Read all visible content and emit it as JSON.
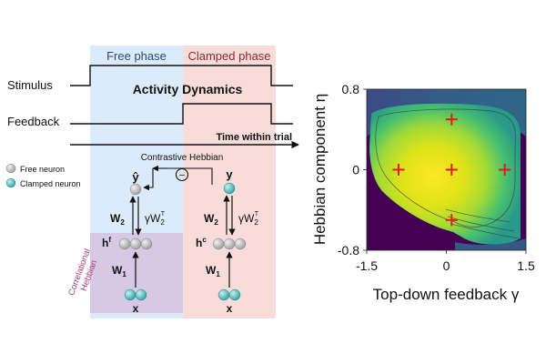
{
  "diagram": {
    "phases": {
      "free": "Free phase",
      "clamped": "Clamped phase"
    },
    "signals": {
      "stimulus": "Stimulus",
      "feedback": "Feedback",
      "activity": "Activity Dynamics",
      "time_axis": "Time within trial"
    },
    "legend": {
      "free_neuron": "Free neuron",
      "clamped_neuron": "Clamped neuron"
    },
    "contrastive_label": "Contrastive Hebbian",
    "correlational_label_1": "Correlational",
    "correlational_label_2": "Hebbian",
    "operator_symbol": "−",
    "free_net": {
      "output": "ŷ",
      "hidden": "h",
      "hidden_sup": "f",
      "input": "x",
      "w_top": "W",
      "w_top_sub": "2",
      "w_fb": "γW",
      "w_fb_sub": "2",
      "w_fb_sup": "T",
      "w_bottom": "W",
      "w_bottom_sub": "1"
    },
    "clamped_net": {
      "output": "y",
      "hidden": "h",
      "hidden_sup": "c",
      "input": "x",
      "w_top": "W",
      "w_top_sub": "2",
      "w_fb": "γW",
      "w_fb_sub": "2",
      "w_fb_sup": "T",
      "w_bottom": "W",
      "w_bottom_sub": "1"
    },
    "colors": {
      "free_bg": "#dcebfb",
      "clamped_bg": "#f8dcda",
      "hebbian_bg": "#d7c8e6",
      "free_neuron": "#b0b0b0",
      "clamped_neuron": "#5fc2c2",
      "marker": "#e41a1c",
      "correlational_text": "#b03a6e"
    }
  },
  "chart_data": {
    "type": "heatmap",
    "xlabel": "Top-down feedback γ",
    "ylabel": "Hebbian component η",
    "x_ticks": [
      "-1.5",
      "0",
      "1.5"
    ],
    "y_ticks": [
      "0.8",
      "0",
      "-0.8"
    ],
    "xlim": [
      -1.5,
      1.5
    ],
    "ylim": [
      -0.8,
      0.8
    ],
    "colormap": "viridis",
    "markers": [
      {
        "x": 0.1,
        "y": 0.5
      },
      {
        "x": -0.9,
        "y": 0.0
      },
      {
        "x": 0.1,
        "y": 0.0
      },
      {
        "x": 1.1,
        "y": 0.0
      },
      {
        "x": 0.1,
        "y": -0.5
      }
    ]
  }
}
